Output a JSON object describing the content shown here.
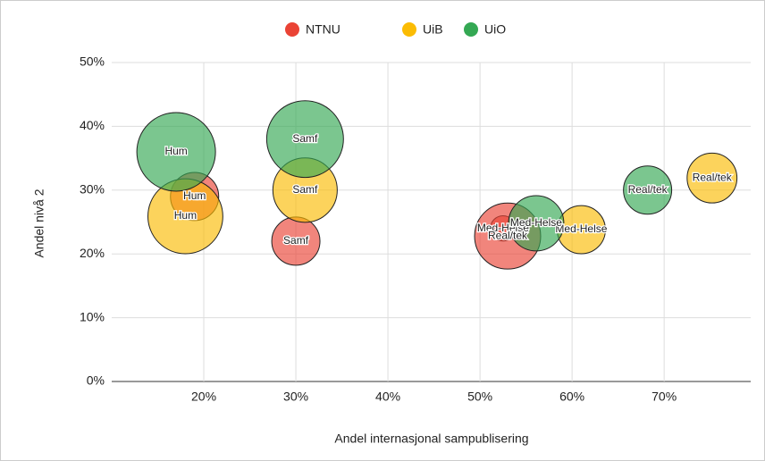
{
  "chart_data": {
    "type": "bubble",
    "x_label": "Andel internasjonal sampublisering",
    "y_label": "Andel nivå 2",
    "xlim": [
      10,
      79.4
    ],
    "ylim": [
      0,
      50
    ],
    "xticks": [
      {
        "value": 20,
        "label": "20%"
      },
      {
        "value": 30,
        "label": "30%"
      },
      {
        "value": 40,
        "label": "40%"
      },
      {
        "value": 50,
        "label": "50%"
      },
      {
        "value": 60,
        "label": "60%"
      },
      {
        "value": 70,
        "label": "70%"
      }
    ],
    "yticks": [
      {
        "value": 0,
        "label": "0%"
      },
      {
        "value": 10,
        "label": "10%"
      },
      {
        "value": 20,
        "label": "20%"
      },
      {
        "value": 30,
        "label": "30%"
      },
      {
        "value": 40,
        "label": "40%"
      },
      {
        "value": 50,
        "label": "50%"
      }
    ],
    "grid": true,
    "legend": "top",
    "series": [
      {
        "name": "NTNU",
        "color": "#ea4335",
        "labels": [
          "Hum",
          "Samf",
          "Med-Helse",
          "Real/tek"
        ],
        "x": [
          19,
          30,
          52.5,
          53
        ],
        "values": [
          29,
          22,
          24,
          22.8
        ],
        "sizes": [
          73,
          73,
          20,
          137
        ]
      },
      {
        "name": "UiB",
        "color": "#fbbc04",
        "labels": [
          "Hum",
          "Samf",
          "Med-Helse",
          "Real/tek"
        ],
        "x": [
          18,
          31,
          61,
          75.2
        ],
        "values": [
          25.9,
          30,
          23.8,
          31.9
        ],
        "sizes": [
          176,
          130,
          73,
          78
        ]
      },
      {
        "name": "UiO",
        "color": "#34a853",
        "labels": [
          "Hum",
          "Samf",
          "Med-Helse",
          "Real/tek"
        ],
        "x": [
          17,
          31,
          56.1,
          68.2
        ],
        "values": [
          36,
          38,
          24.8,
          30
        ],
        "sizes": [
          194,
          185,
          96,
          73
        ]
      }
    ]
  }
}
